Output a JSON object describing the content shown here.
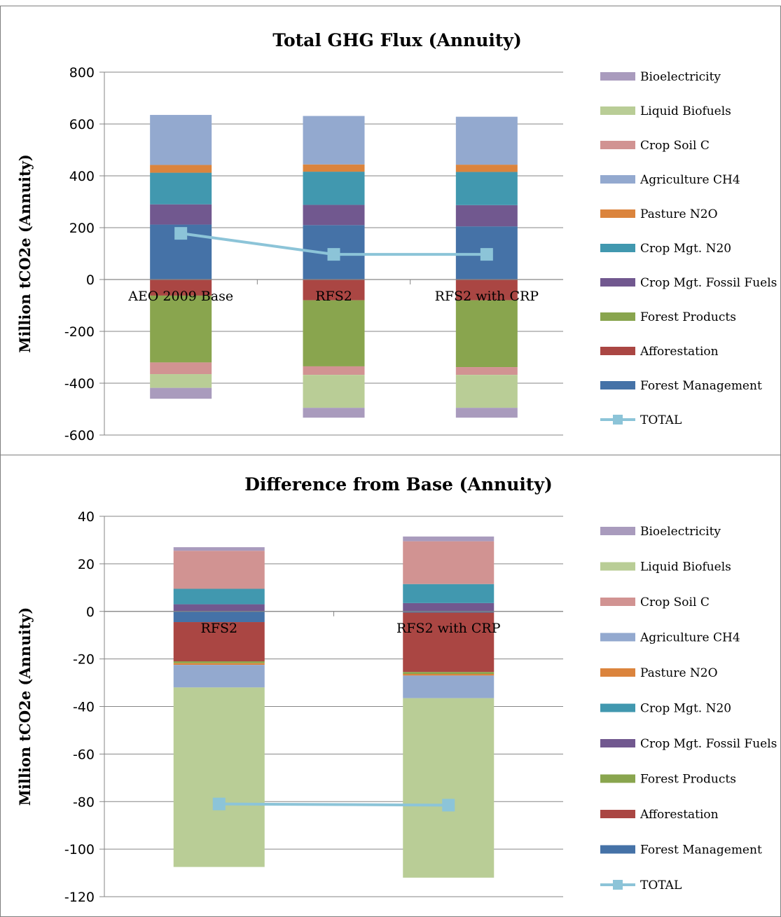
{
  "chart_data": [
    {
      "type": "bar",
      "stacked": true,
      "title": "Total GHG Flux (Annuity)",
      "ylabel": "Million tCO2e (Annuity)",
      "ylim": [
        -600,
        800
      ],
      "yticks": [
        800,
        600,
        400,
        200,
        0,
        -200,
        -400,
        -600
      ],
      "grid": true,
      "legend_position": "right",
      "categories": [
        "AEO 2009 Base",
        "RFS2",
        "RFS2 with CRP"
      ],
      "series": [
        {
          "name": "Forest Management",
          "color": "#4572a7",
          "values": [
            212,
            210,
            205
          ]
        },
        {
          "name": "Afforestation",
          "color": "#aa4643",
          "values": [
            -62,
            -80,
            -80
          ]
        },
        {
          "name": "Forest Products",
          "color": "#89a54e",
          "values": [
            -258,
            -255,
            -258
          ]
        },
        {
          "name": "Crop Mgt. Fossil Fuels",
          "color": "#71588f",
          "values": [
            78,
            78,
            82
          ]
        },
        {
          "name": "Crop Mgt. N20",
          "color": "#4198af",
          "values": [
            122,
            128,
            128
          ]
        },
        {
          "name": "Pasture N2O",
          "color": "#db843d",
          "values": [
            30,
            28,
            28
          ]
        },
        {
          "name": "Agriculture CH4",
          "color": "#93a9cf",
          "values": [
            193,
            187,
            185
          ]
        },
        {
          "name": "Crop Soil C",
          "color": "#d19392",
          "values": [
            -45,
            -33,
            -30
          ]
        },
        {
          "name": "Liquid Biofuels",
          "color": "#b9cd96",
          "values": [
            -53,
            -127,
            -127
          ]
        },
        {
          "name": "Bioelectricity",
          "color": "#a99bbd",
          "values": [
            -42,
            -38,
            -38
          ]
        }
      ],
      "total": {
        "name": "TOTAL",
        "color": "#8cc4d8",
        "values": [
          178,
          97,
          97
        ]
      }
    },
    {
      "type": "bar",
      "stacked": true,
      "title": "Difference from Base (Annuity)",
      "ylabel": "Million tCO2e (Annuity)",
      "ylim": [
        -120,
        40
      ],
      "yticks": [
        40,
        20,
        0,
        -20,
        -40,
        -60,
        -80,
        -100,
        -120
      ],
      "grid": true,
      "legend_position": "right",
      "categories": [
        "RFS2",
        "RFS2 with CRP"
      ],
      "series": [
        {
          "name": "Forest Management",
          "color": "#4572a7",
          "values": [
            -4.5,
            -0.5
          ]
        },
        {
          "name": "Afforestation",
          "color": "#aa4643",
          "values": [
            -16.5,
            -25
          ]
        },
        {
          "name": "Forest Products",
          "color": "#89a54e",
          "values": [
            -0.8,
            -0.8
          ]
        },
        {
          "name": "Crop Mgt. Fossil Fuels",
          "color": "#71588f",
          "values": [
            3,
            3.5
          ]
        },
        {
          "name": "Crop Mgt. N20",
          "color": "#4198af",
          "values": [
            6.5,
            8
          ]
        },
        {
          "name": "Pasture N2O",
          "color": "#db843d",
          "values": [
            -0.7,
            -0.7
          ]
        },
        {
          "name": "Agriculture CH4",
          "color": "#93a9cf",
          "values": [
            -9.5,
            -9.5
          ]
        },
        {
          "name": "Crop Soil C",
          "color": "#d19392",
          "values": [
            16,
            18
          ]
        },
        {
          "name": "Liquid Biofuels",
          "color": "#b9cd96",
          "values": [
            -75.5,
            -75.5
          ]
        },
        {
          "name": "Bioelectricity",
          "color": "#a99bbd",
          "values": [
            1.5,
            2
          ]
        }
      ],
      "total": {
        "name": "TOTAL",
        "color": "#8cc4d8",
        "values": [
          -81,
          -81.5
        ]
      }
    }
  ]
}
